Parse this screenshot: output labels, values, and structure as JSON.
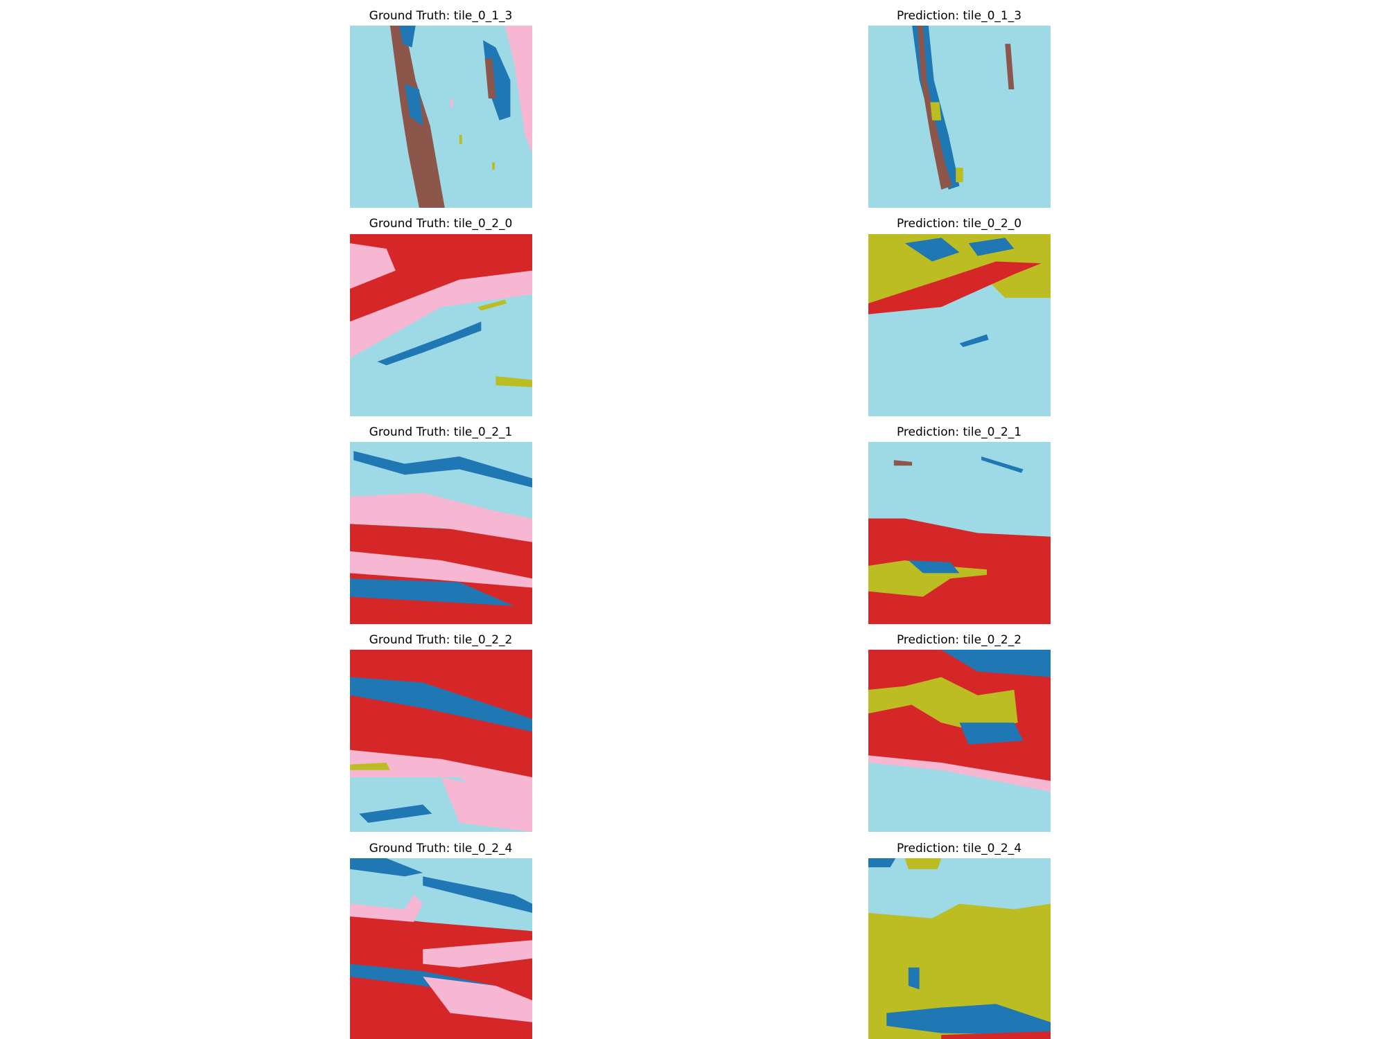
{
  "rows": [
    {
      "ground_truth": "Ground Truth: tile_0_1_3",
      "prediction": "Prediction: tile_0_1_3"
    },
    {
      "ground_truth": "Ground Truth: tile_0_2_0",
      "prediction": "Prediction: tile_0_2_0"
    },
    {
      "ground_truth": "Ground Truth: tile_0_2_1",
      "prediction": "Prediction: tile_0_2_1"
    },
    {
      "ground_truth": "Ground Truth: tile_0_2_2",
      "prediction": "Prediction: tile_0_2_2"
    },
    {
      "ground_truth": "Ground Truth: tile_0_2_4",
      "prediction": "Prediction: tile_0_2_4"
    }
  ]
}
